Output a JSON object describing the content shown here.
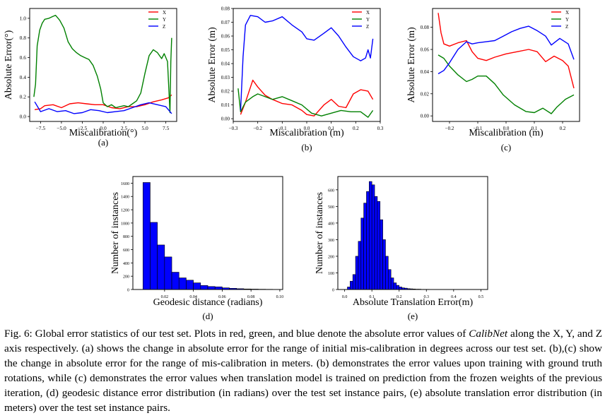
{
  "figure": {
    "subfig_labels": [
      "(a)",
      "(b)",
      "(c)",
      "(d)",
      "(e)"
    ],
    "legend_names": [
      "X",
      "Y",
      "Z"
    ],
    "colors": {
      "X": "#ff0000",
      "Y": "#008000",
      "Z": "#0000ff",
      "hist": "#0000ff"
    }
  },
  "chart_data": [
    {
      "type": "line",
      "panel": "(a)",
      "xlabel": "Miscalibration(°)",
      "ylabel": "Absolute Error(°)",
      "xlim": [
        -8.8,
        8.8
      ],
      "ylim": [
        -0.05,
        1.1
      ],
      "xticks": [
        -7.5,
        -5.0,
        -2.5,
        0.0,
        2.5,
        5.0,
        7.5
      ],
      "xtick_labels": [
        "−7.5",
        "−5.0",
        "−2.5",
        "0.0",
        "2.5",
        "5.0",
        "7.5"
      ],
      "yticks": [
        0.0,
        0.2,
        0.4,
        0.6,
        0.8,
        1.0
      ],
      "ytick_labels": [
        "0.0",
        "0.2",
        "0.4",
        "0.6",
        "0.8",
        "1.0"
      ],
      "legend": "top-right",
      "series": [
        {
          "name": "X",
          "color": "#ff0000",
          "x": [
            -8.2,
            -7.5,
            -7.0,
            -6.0,
            -5.0,
            -4.0,
            -3.0,
            -2.0,
            -1.0,
            0.0,
            1.0,
            2.0,
            3.0,
            4.0,
            5.0,
            6.0,
            7.0,
            7.8,
            8.2
          ],
          "y": [
            0.07,
            0.08,
            0.11,
            0.12,
            0.09,
            0.13,
            0.14,
            0.13,
            0.12,
            0.12,
            0.09,
            0.08,
            0.1,
            0.1,
            0.12,
            0.15,
            0.17,
            0.19,
            0.22
          ]
        },
        {
          "name": "Y",
          "color": "#008000",
          "x": [
            -8.3,
            -8.1,
            -7.9,
            -7.6,
            -7.3,
            -7.0,
            -6.5,
            -6.0,
            -5.7,
            -5.2,
            -4.7,
            -4.2,
            -3.7,
            -3.2,
            -2.7,
            -2.2,
            -1.7,
            -1.2,
            -0.7,
            -0.3,
            0.0,
            0.5,
            1.0,
            1.5,
            2.0,
            2.5,
            3.0,
            3.5,
            4.0,
            4.5,
            5.0,
            5.5,
            6.0,
            6.5,
            7.0,
            7.3,
            7.7,
            8.0,
            8.1,
            8.2
          ],
          "y": [
            0.2,
            0.33,
            0.72,
            0.88,
            0.95,
            0.99,
            1.0,
            1.02,
            1.03,
            0.98,
            0.9,
            0.76,
            0.69,
            0.65,
            0.62,
            0.6,
            0.58,
            0.52,
            0.41,
            0.28,
            0.14,
            0.1,
            0.12,
            0.09,
            0.1,
            0.11,
            0.1,
            0.13,
            0.16,
            0.24,
            0.44,
            0.62,
            0.68,
            0.65,
            0.59,
            0.64,
            0.56,
            0.04,
            0.56,
            0.8
          ]
        },
        {
          "name": "Z",
          "color": "#0000ff",
          "x": [
            -8.2,
            -7.5,
            -6.5,
            -5.5,
            -4.5,
            -3.5,
            -2.5,
            -1.5,
            -0.5,
            0.5,
            1.5,
            2.5,
            3.5,
            4.5,
            5.5,
            6.5,
            7.5,
            8.2
          ],
          "y": [
            0.15,
            0.05,
            0.08,
            0.05,
            0.06,
            0.03,
            0.04,
            0.07,
            0.06,
            0.04,
            0.05,
            0.06,
            0.09,
            0.12,
            0.14,
            0.12,
            0.1,
            0.03
          ]
        }
      ]
    },
    {
      "type": "line",
      "panel": "(b)",
      "xlabel": "Miscalibration (m)",
      "ylabel": "Absolute Error (m)",
      "xlim": [
        -0.3,
        0.3
      ],
      "ylim": [
        -0.002,
        0.08
      ],
      "xticks": [
        -0.3,
        -0.2,
        -0.1,
        0.0,
        0.1,
        0.2,
        0.3
      ],
      "xtick_labels": [
        "−0.3",
        "−0.2",
        "−0.1",
        "0.0",
        "0.1",
        "0.2",
        "0.3"
      ],
      "yticks": [
        0.0,
        0.01,
        0.02,
        0.03,
        0.04,
        0.05,
        0.06,
        0.07,
        0.08
      ],
      "ytick_labels": [
        "0.00",
        "0.01",
        "0.02",
        "0.03",
        "0.04",
        "0.05",
        "0.06",
        "0.07",
        "0.08"
      ],
      "legend": "top-right",
      "series": [
        {
          "name": "X",
          "color": "#ff0000",
          "x": [
            -0.27,
            -0.25,
            -0.22,
            -0.2,
            -0.17,
            -0.14,
            -0.1,
            -0.06,
            -0.02,
            0.0,
            0.03,
            0.07,
            0.1,
            0.13,
            0.16,
            0.19,
            0.22,
            0.25,
            0.27
          ],
          "y": [
            0.003,
            0.012,
            0.028,
            0.023,
            0.017,
            0.014,
            0.011,
            0.01,
            0.006,
            0.003,
            0.002,
            0.01,
            0.014,
            0.009,
            0.008,
            0.018,
            0.021,
            0.02,
            0.014
          ]
        },
        {
          "name": "Y",
          "color": "#008000",
          "x": [
            -0.28,
            -0.27,
            -0.25,
            -0.22,
            -0.2,
            -0.17,
            -0.14,
            -0.1,
            -0.06,
            -0.02,
            0.02,
            0.06,
            0.1,
            0.14,
            0.18,
            0.22,
            0.25,
            0.27
          ],
          "y": [
            0.022,
            0.005,
            0.012,
            0.016,
            0.018,
            0.016,
            0.014,
            0.016,
            0.013,
            0.01,
            0.004,
            0.002,
            0.004,
            0.006,
            0.005,
            0.005,
            0.001,
            0.006
          ]
        },
        {
          "name": "Z",
          "color": "#0000ff",
          "x": [
            -0.27,
            -0.26,
            -0.25,
            -0.23,
            -0.2,
            -0.17,
            -0.14,
            -0.1,
            -0.06,
            -0.02,
            0.0,
            0.03,
            0.07,
            0.1,
            0.13,
            0.16,
            0.19,
            0.22,
            0.24,
            0.25,
            0.26,
            0.27
          ],
          "y": [
            0.006,
            0.045,
            0.068,
            0.075,
            0.074,
            0.07,
            0.071,
            0.074,
            0.068,
            0.063,
            0.058,
            0.057,
            0.062,
            0.066,
            0.06,
            0.052,
            0.045,
            0.042,
            0.044,
            0.05,
            0.044,
            0.058
          ]
        }
      ]
    },
    {
      "type": "line",
      "panel": "(c)",
      "xlabel": "Miscalibration (m)",
      "ylabel": "Absolute Error (m)",
      "xlim": [
        -0.26,
        0.26
      ],
      "ylim": [
        -0.005,
        0.097
      ],
      "xticks": [
        -0.2,
        -0.1,
        0.0,
        0.1,
        0.2
      ],
      "xtick_labels": [
        "−0.2",
        "−0.1",
        "0.0",
        "0.1",
        "0.2"
      ],
      "yticks": [
        0.0,
        0.02,
        0.04,
        0.06,
        0.08
      ],
      "ytick_labels": [
        "0.00",
        "0.02",
        "0.04",
        "0.06",
        "0.08"
      ],
      "legend": "top-right",
      "series": [
        {
          "name": "X",
          "color": "#ff0000",
          "x": [
            -0.24,
            -0.23,
            -0.22,
            -0.2,
            -0.17,
            -0.14,
            -0.12,
            -0.1,
            -0.07,
            -0.04,
            0.0,
            0.04,
            0.08,
            0.11,
            0.14,
            0.17,
            0.2,
            0.22,
            0.24
          ],
          "y": [
            0.093,
            0.075,
            0.065,
            0.063,
            0.066,
            0.068,
            0.058,
            0.052,
            0.05,
            0.053,
            0.056,
            0.058,
            0.06,
            0.058,
            0.049,
            0.054,
            0.05,
            0.045,
            0.025
          ]
        },
        {
          "name": "Y",
          "color": "#008000",
          "x": [
            -0.24,
            -0.22,
            -0.2,
            -0.17,
            -0.14,
            -0.12,
            -0.1,
            -0.07,
            -0.04,
            -0.01,
            0.03,
            0.07,
            0.1,
            0.13,
            0.16,
            0.18,
            0.21,
            0.24
          ],
          "y": [
            0.055,
            0.052,
            0.045,
            0.037,
            0.031,
            0.033,
            0.036,
            0.036,
            0.029,
            0.019,
            0.01,
            0.004,
            0.003,
            0.007,
            0.002,
            0.008,
            0.015,
            0.019
          ]
        },
        {
          "name": "Z",
          "color": "#0000ff",
          "x": [
            -0.24,
            -0.22,
            -0.2,
            -0.17,
            -0.14,
            -0.12,
            -0.1,
            -0.07,
            -0.04,
            -0.01,
            0.02,
            0.05,
            0.08,
            0.11,
            0.14,
            0.16,
            0.19,
            0.22,
            0.24
          ],
          "y": [
            0.038,
            0.041,
            0.048,
            0.06,
            0.067,
            0.065,
            0.066,
            0.067,
            0.068,
            0.072,
            0.076,
            0.079,
            0.081,
            0.077,
            0.072,
            0.064,
            0.07,
            0.065,
            0.051
          ]
        }
      ]
    },
    {
      "type": "bar",
      "panel": "(d)",
      "xlabel": "Geodesic distance (radians)",
      "ylabel": "Number of instances",
      "xlim": [
        -0.002,
        0.102
      ],
      "ylim": [
        0,
        1700
      ],
      "xticks": [
        0.02,
        0.04,
        0.06,
        0.08,
        0.1
      ],
      "xtick_labels": [
        "0.02",
        "0.04",
        "0.06",
        "0.08",
        "0.10"
      ],
      "yticks": [
        0,
        200,
        400,
        600,
        800,
        1000,
        1200,
        1400,
        1600
      ],
      "ytick_labels": [
        "0",
        "200",
        "400",
        "600",
        "800",
        "1000",
        "1200",
        "1400",
        "1600"
      ],
      "bin_start": 0.005,
      "bin_width": 0.005,
      "values": [
        1610,
        1010,
        670,
        490,
        260,
        175,
        140,
        100,
        60,
        45,
        40,
        25,
        18,
        12,
        8,
        6,
        4,
        3,
        2
      ]
    },
    {
      "type": "bar",
      "panel": "(e)",
      "xlabel": "Absolute Translation Error(m)",
      "ylabel": "Number of instances",
      "xlim": [
        -0.025,
        0.525
      ],
      "ylim": [
        0,
        680
      ],
      "xticks": [
        0.0,
        0.1,
        0.2,
        0.3,
        0.4,
        0.5
      ],
      "xtick_labels": [
        "0.0",
        "0.1",
        "0.2",
        "0.3",
        "0.4",
        "0.5"
      ],
      "yticks": [
        0,
        100,
        200,
        300,
        400,
        500,
        600
      ],
      "ytick_labels": [
        "0",
        "100",
        "200",
        "300",
        "400",
        "500",
        "600"
      ],
      "bin_start": 0.01,
      "bin_width": 0.01,
      "values": [
        15,
        50,
        90,
        200,
        290,
        430,
        520,
        590,
        650,
        630,
        560,
        530,
        420,
        300,
        200,
        120,
        70,
        40,
        25,
        15,
        10,
        8,
        5,
        4,
        3,
        2,
        2,
        1,
        1,
        1
      ]
    }
  ],
  "caption": {
    "lead": "Fig. 6: Global error statistics of our test set. Plots in red, green, and blue denote the absolute error values of ",
    "name": "CalibNet",
    "rest": " along the X, Y, and Z axis respectively. (a) shows the change in absolute error for the range of initial mis-calibration in degrees across our test set. (b),(c) show the change in absolute error for the range of mis-calibration in meters. (b) demonstrates the error values upon training with ground truth rotations, while (c) demonstrates the error values when translation model is trained on prediction from the frozen weights of the previous iteration, (d) geodesic distance error distribution (in radians) over the test set instance pairs, (e) absolute translation error distribution (in meters) over the test set instance pairs."
  }
}
